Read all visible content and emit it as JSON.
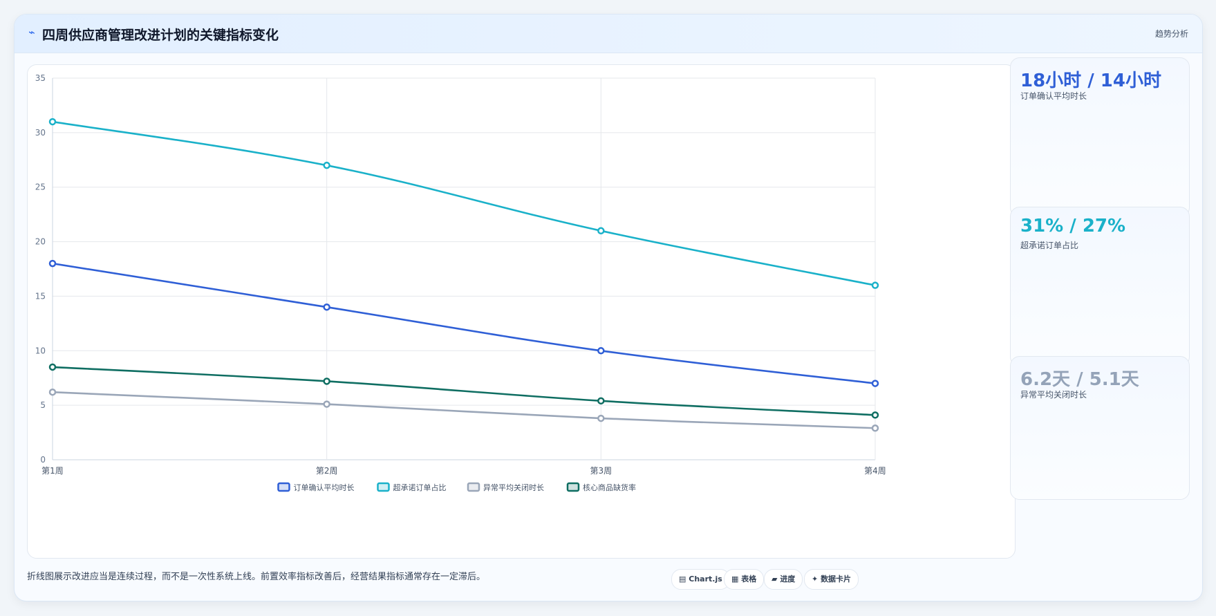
{
  "header": {
    "icon": "trend-icon",
    "title": "四周供应商管理改进计划的关键指标变化",
    "tag": "趋势分析"
  },
  "chart_data": {
    "type": "line",
    "categories": [
      "第1周",
      "第2周",
      "第3周",
      "第4周"
    ],
    "ylim": [
      0,
      35
    ],
    "yticks": [
      0,
      5,
      10,
      15,
      20,
      25,
      30,
      35
    ],
    "grid": true,
    "legend_position": "bottom",
    "series": [
      {
        "name": "订单确认平均时长",
        "values": [
          18,
          14,
          10,
          7
        ],
        "color": "#2f5fd6"
      },
      {
        "name": "超承诺订单占比",
        "values": [
          31,
          27,
          21,
          16
        ],
        "color": "#1ab1c9"
      },
      {
        "name": "异常平均关闭时长",
        "values": [
          6.2,
          5.1,
          3.8,
          2.9
        ],
        "color": "#9aa6b8"
      },
      {
        "name": "核心商品缺货率",
        "values": [
          8.5,
          7.2,
          5.4,
          4.1
        ],
        "color": "#0f6e62"
      }
    ]
  },
  "kpis": [
    {
      "value": "18小时 / 14小时",
      "label": "订单确认平均时长",
      "color": "#2f5fd6"
    },
    {
      "value": "31% / 27%",
      "label": "超承诺订单占比",
      "color": "#1ab1c9"
    },
    {
      "value": "6.2天 / 5.1天",
      "label": "异常平均关闭时长",
      "color": "#94a3b8"
    }
  ],
  "footer": {
    "note": "折线图展示改进应当是连续过程，而不是一次性系统上线。前置效率指标改善后，经营结果指标通常存在一定滞后。",
    "chips": [
      {
        "icon": "chart-icon",
        "glyph": "▤",
        "label": "Chart.js"
      },
      {
        "icon": "table-icon",
        "glyph": "▦",
        "label": "表格"
      },
      {
        "icon": "progress-icon",
        "glyph": "▰",
        "label": "进度"
      },
      {
        "icon": "card-icon",
        "glyph": "✦",
        "label": "数据卡片"
      }
    ]
  }
}
